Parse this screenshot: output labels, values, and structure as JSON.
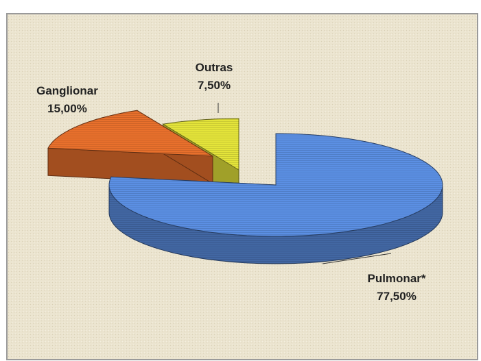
{
  "chart_data": {
    "type": "pie3d",
    "categories": [
      "Pulmonar*",
      "Ganglionar",
      "Outras"
    ],
    "values": [
      77.5,
      15,
      7.5
    ],
    "value_labels": [
      "77,50%",
      "15,00%",
      "7,50%"
    ],
    "colors": [
      "#5b8fe3",
      "#e8702c",
      "#e4e43a"
    ]
  }
}
